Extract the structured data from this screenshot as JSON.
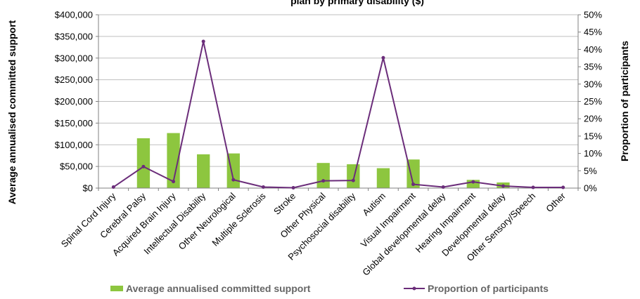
{
  "chart_data": {
    "type": "bar",
    "title": "plan by primary disability ($)",
    "ylabel": "Average annualised committed support",
    "y2label": "Proportion of participants",
    "ylim": [
      0,
      400000
    ],
    "y2lim": [
      0,
      50
    ],
    "yticks": [
      "$0",
      "$50,000",
      "$100,000",
      "$150,000",
      "$200,000",
      "$250,000",
      "$300,000",
      "$350,000",
      "$400,000"
    ],
    "y2ticks": [
      "0%",
      "5%",
      "10%",
      "15%",
      "20%",
      "25%",
      "30%",
      "35%",
      "40%",
      "45%",
      "50%"
    ],
    "categories": [
      "Spinal Cord Injury",
      "Cerebral Palsy",
      "Acquired Brain Injury",
      "Intellectual Disability",
      "Other Neurological",
      "Multiple Sclerosis",
      "Stroke",
      "Other Physical",
      "Psychosocial disability",
      "Autism",
      "Visual Impairment",
      "Global developmental delay",
      "Hearing Impairment",
      "Developmental delay",
      "Other Sensory/Speech",
      "Other"
    ],
    "series": [
      {
        "name": "Average annualised committed support",
        "type": "bar",
        "axis": "left",
        "color": "#8dc63f",
        "values": [
          0,
          115000,
          127000,
          78000,
          80000,
          0,
          0,
          58000,
          55000,
          46000,
          66000,
          0,
          19000,
          13000,
          0,
          0
        ]
      },
      {
        "name": "Proportion of participants",
        "type": "line",
        "axis": "right",
        "color": "#6b2d7a",
        "values": [
          0.3,
          6.2,
          1.9,
          42.3,
          2.4,
          0.3,
          0.1,
          2.1,
          2.2,
          37.6,
          1.1,
          0.3,
          1.8,
          0.6,
          0.2,
          0.2
        ]
      }
    ],
    "grid": true,
    "legend": "bottom"
  }
}
